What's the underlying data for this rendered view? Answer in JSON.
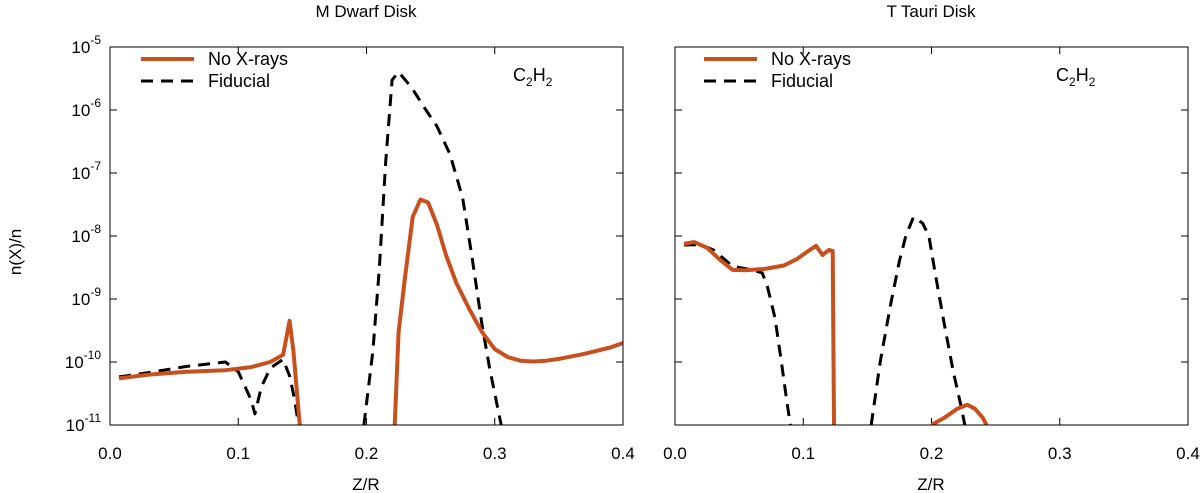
{
  "chart_data": [
    {
      "type": "line",
      "title": "M Dwarf Disk",
      "xlabel": "Z/R",
      "ylabel": "n(X)/n",
      "xlim": [
        0.0,
        0.4
      ],
      "ylim": [
        1e-11,
        1e-05
      ],
      "yscale": "log",
      "x_ticks": [
        0.0,
        0.1,
        0.2,
        0.3,
        0.4
      ],
      "x_tick_labels": [
        "0.0",
        "0.1",
        "0.2",
        "0.3",
        "0.4"
      ],
      "y_ticks": [
        {
          "base": "10",
          "exp": "-5",
          "value": 1e-05
        },
        {
          "base": "10",
          "exp": "-6",
          "value": 1e-06
        },
        {
          "base": "10",
          "exp": "-7",
          "value": 1e-07
        },
        {
          "base": "10",
          "exp": "-8",
          "value": 1e-08
        },
        {
          "base": "10",
          "exp": "-9",
          "value": 1e-09
        },
        {
          "base": "10",
          "exp": "-10",
          "value": 1e-10
        },
        {
          "base": "10",
          "exp": "-11",
          "value": 1e-11
        }
      ],
      "annotation": {
        "main": "C",
        "sub1": "2",
        "mid": "H",
        "sub2": "2"
      },
      "legend_position": "top-left",
      "series": [
        {
          "name": "No X-rays",
          "color": "#c8501e",
          "style": "solid",
          "x": [
            0.007,
            0.03,
            0.06,
            0.09,
            0.11,
            0.125,
            0.135,
            0.14,
            0.143,
            0.146,
            0.148
          ],
          "y": [
            5.5e-11,
            6.3e-11,
            7e-11,
            7.4e-11,
            8.3e-11,
            1e-10,
            1.3e-10,
            4.5e-10,
            1.5e-10,
            3e-11,
            1e-11
          ]
        },
        {
          "name": "No X-rays",
          "color": "#c8501e",
          "style": "solid",
          "x": [
            0.222,
            0.225,
            0.23,
            0.236,
            0.242,
            0.248,
            0.255,
            0.262,
            0.27,
            0.28,
            0.29,
            0.3,
            0.31,
            0.32,
            0.33,
            0.34,
            0.35,
            0.37,
            0.39,
            0.4
          ],
          "y": [
            1e-11,
            3e-10,
            2.2e-09,
            2e-08,
            3.8e-08,
            3.4e-08,
            1.5e-08,
            5e-09,
            1.8e-09,
            7e-10,
            3e-10,
            1.6e-10,
            1.2e-10,
            1.05e-10,
            1.02e-10,
            1.05e-10,
            1.12e-10,
            1.35e-10,
            1.7e-10,
            2e-10
          ]
        },
        {
          "name": "Fiducial",
          "color": "#000000",
          "style": "dashed",
          "x": [
            0.007,
            0.03,
            0.06,
            0.09,
            0.1,
            0.11,
            0.113,
            0.118,
            0.125,
            0.135,
            0.14,
            0.144,
            0.147
          ],
          "y": [
            5.8e-11,
            6.8e-11,
            8.5e-11,
            1e-10,
            7e-11,
            2.5e-11,
            1.5e-11,
            4e-11,
            8e-11,
            1.1e-10,
            6e-11,
            2.5e-11,
            1e-11
          ]
        },
        {
          "name": "Fiducial",
          "color": "#000000",
          "style": "dashed",
          "x": [
            0.198,
            0.205,
            0.21,
            0.215,
            0.22,
            0.225,
            0.235,
            0.245,
            0.255,
            0.265,
            0.275,
            0.282,
            0.29,
            0.296,
            0.302,
            0.305
          ],
          "y": [
            1e-11,
            1.5e-10,
            3e-09,
            1.5e-07,
            3e-06,
            4e-06,
            2.3e-06,
            1.1e-06,
            5.5e-07,
            2e-07,
            4e-08,
            5e-09,
            4e-10,
            8e-11,
            2e-11,
            1e-11
          ]
        }
      ]
    },
    {
      "type": "line",
      "title": "T Tauri Disk",
      "xlabel": "Z/R",
      "xlim": [
        0.0,
        0.4
      ],
      "ylim": [
        1e-11,
        1e-05
      ],
      "yscale": "log",
      "x_ticks": [
        0.0,
        0.1,
        0.2,
        0.3,
        0.4
      ],
      "x_tick_labels": [
        "0.0",
        "0.1",
        "0.2",
        "0.3",
        "0.4"
      ],
      "annotation": {
        "main": "C",
        "sub1": "2",
        "mid": "H",
        "sub2": "2"
      },
      "legend_position": "top-left",
      "series": [
        {
          "name": "No X-rays",
          "color": "#c8501e",
          "style": "solid",
          "x": [
            0.007,
            0.015,
            0.025,
            0.035,
            0.045,
            0.055,
            0.07,
            0.085,
            0.095,
            0.105,
            0.11,
            0.115,
            0.12,
            0.123,
            0.124
          ],
          "y": [
            7.5e-09,
            8e-09,
            6.5e-09,
            4.2e-09,
            2.9e-09,
            2.85e-09,
            3e-09,
            3.4e-09,
            4.3e-09,
            6e-09,
            7e-09,
            5e-09,
            6e-09,
            5.8e-09,
            1e-11
          ]
        },
        {
          "name": "No X-rays",
          "color": "#c8501e",
          "style": "solid",
          "x": [
            0.2,
            0.21,
            0.22,
            0.228,
            0.234,
            0.24,
            0.243
          ],
          "y": [
            1e-11,
            1.3e-11,
            1.8e-11,
            2.1e-11,
            1.8e-11,
            1.3e-11,
            1e-11
          ]
        },
        {
          "name": "Fiducial",
          "color": "#000000",
          "style": "dashed",
          "x": [
            0.007,
            0.02,
            0.03,
            0.045,
            0.06,
            0.068,
            0.072,
            0.078,
            0.083,
            0.087,
            0.09
          ],
          "y": [
            7.2e-09,
            7.3e-09,
            6e-09,
            3.3e-09,
            2.9e-09,
            2.6e-09,
            1.6e-09,
            5e-10,
            1e-10,
            2.5e-11,
            1e-11
          ]
        },
        {
          "name": "Fiducial",
          "color": "#000000",
          "style": "dashed",
          "x": [
            0.153,
            0.16,
            0.168,
            0.175,
            0.18,
            0.186,
            0.193,
            0.198,
            0.203,
            0.21,
            0.217,
            0.223,
            0.226
          ],
          "y": [
            1e-11,
            1e-10,
            8e-10,
            4e-09,
            1e-08,
            2e-08,
            1.6e-08,
            1e-08,
            2.5e-09,
            4e-10,
            7e-11,
            2e-11,
            1e-11
          ]
        }
      ]
    }
  ]
}
